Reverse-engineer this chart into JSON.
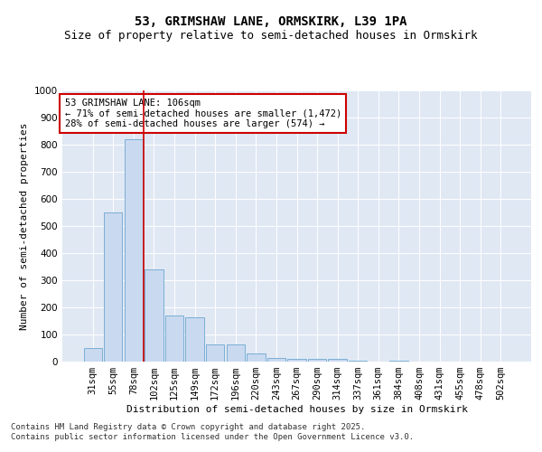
{
  "title_line1": "53, GRIMSHAW LANE, ORMSKIRK, L39 1PA",
  "title_line2": "Size of property relative to semi-detached houses in Ormskirk",
  "xlabel": "Distribution of semi-detached houses by size in Ormskirk",
  "ylabel": "Number of semi-detached properties",
  "categories": [
    "31sqm",
    "55sqm",
    "78sqm",
    "102sqm",
    "125sqm",
    "149sqm",
    "172sqm",
    "196sqm",
    "220sqm",
    "243sqm",
    "267sqm",
    "290sqm",
    "314sqm",
    "337sqm",
    "361sqm",
    "384sqm",
    "408sqm",
    "431sqm",
    "455sqm",
    "478sqm",
    "502sqm"
  ],
  "values": [
    50,
    550,
    820,
    340,
    170,
    165,
    65,
    65,
    30,
    15,
    10,
    10,
    10,
    5,
    0,
    5,
    0,
    0,
    0,
    0,
    0
  ],
  "bar_color": "#c9d9f0",
  "bar_edge_color": "#7bafd4",
  "annotation_box_text": "53 GRIMSHAW LANE: 106sqm\n← 71% of semi-detached houses are smaller (1,472)\n28% of semi-detached houses are larger (574) →",
  "annotation_box_color": "#ffffff",
  "annotation_box_edge_color": "#cc0000",
  "vline_color": "#cc0000",
  "vline_x": 2.5,
  "ylim": [
    0,
    1000
  ],
  "yticks": [
    0,
    100,
    200,
    300,
    400,
    500,
    600,
    700,
    800,
    900,
    1000
  ],
  "background_color": "#e0e8f4",
  "footer_text": "Contains HM Land Registry data © Crown copyright and database right 2025.\nContains public sector information licensed under the Open Government Licence v3.0.",
  "title_fontsize": 10,
  "subtitle_fontsize": 9,
  "axis_label_fontsize": 8,
  "tick_fontsize": 7.5,
  "annotation_fontsize": 7.5,
  "footer_fontsize": 6.5,
  "ylabel_fontsize": 8
}
